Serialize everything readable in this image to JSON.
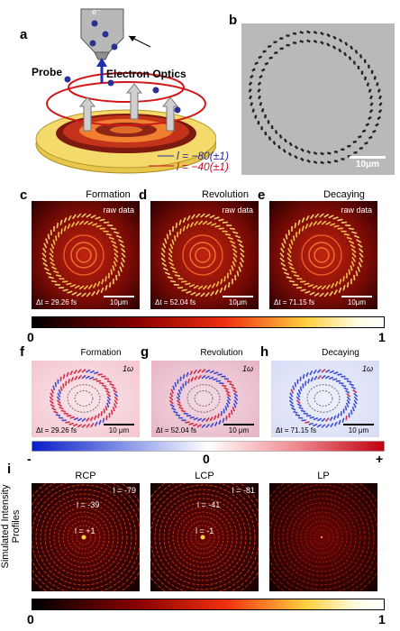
{
  "panels": {
    "a": {
      "label": "a",
      "electron": "e⁻",
      "probe": "Probe",
      "electron_optics": "Electron Optics",
      "l1": "l = −80(±1)",
      "l2": "l = −40(±1)"
    },
    "b": {
      "label": "b",
      "scale": "10μm"
    },
    "c": {
      "label": "c",
      "title": "Formation",
      "tag": "raw data",
      "dt": "Δt = 29.26 fs",
      "scale": "10μm"
    },
    "d": {
      "label": "d",
      "title": "Revolution",
      "tag": "raw data",
      "dt": "Δt = 52.04 fs",
      "scale": "10μm"
    },
    "e": {
      "label": "e",
      "title": "Decaying",
      "tag": "raw data",
      "dt": "Δt = 71.15 fs",
      "scale": "10μm"
    },
    "f": {
      "label": "f",
      "title": "Formation",
      "tag": "1ω",
      "dt": "Δt = 29.26 fs",
      "scale": "10 μm"
    },
    "g": {
      "label": "g",
      "title": "Revolution",
      "tag": "1ω",
      "dt": "Δt = 52.04 fs",
      "scale": "10 μm"
    },
    "h": {
      "label": "h",
      "title": "Decaying",
      "tag": "1ω",
      "dt": "Δt = 71.15 fs",
      "scale": "10 μm"
    },
    "i": {
      "label": "i",
      "ylabel": "Simulated Intensity Profiles",
      "titles": [
        "RCP",
        "LCP",
        "LP"
      ],
      "rcp_labels": [
        "l = -79",
        "l = -39",
        "l = +1"
      ],
      "lcp_labels": [
        "l = -81",
        "l = -41",
        "l = -1"
      ]
    }
  },
  "colorbars": {
    "hot1": {
      "min": "0",
      "max": "1"
    },
    "div": {
      "min": "-",
      "mid": "0",
      "max": "+"
    },
    "hot2": {
      "min": "0",
      "max": "1"
    }
  },
  "colors": {
    "hot_dark": "#1a0000",
    "hot_mid": "#e8301a",
    "hot_bright": "#ffd84a",
    "div_neg": "#1a2fd0",
    "div_pos": "#c8102e",
    "accent_blue": "#2b2fa6",
    "accent_red": "#c8102e"
  }
}
